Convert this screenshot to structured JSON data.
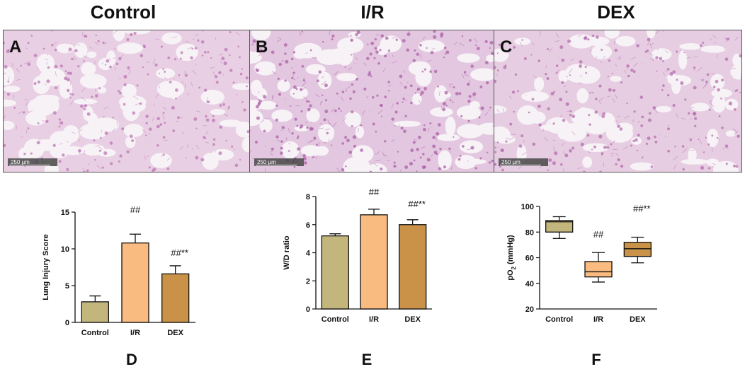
{
  "figure": {
    "group_titles": [
      "Control",
      "I/R",
      "DEX"
    ],
    "image_panels": [
      {
        "letter": "A",
        "scale": "250 µm",
        "tint": "#e8cfe3",
        "cell": "#b96fb0"
      },
      {
        "letter": "B",
        "scale": "250 µm",
        "tint": "#e3c6df",
        "cell": "#a75aa3"
      },
      {
        "letter": "C",
        "scale": "250 µm",
        "tint": "#e6cde2",
        "cell": "#b067ab"
      }
    ],
    "chart_letters": [
      "D",
      "E",
      "F"
    ]
  },
  "colors": {
    "control": "#c2b67d",
    "ir": "#f9bb7f",
    "dex": "#c99248"
  },
  "chart_data": [
    {
      "type": "bar",
      "categories": [
        "Control",
        "I/R",
        "DEX"
      ],
      "values": [
        2.8,
        10.8,
        6.6
      ],
      "errors": [
        0.8,
        1.2,
        1.1
      ],
      "ylabel": "Lung Injury Score",
      "ylim": [
        0,
        15
      ],
      "yticks": [
        "0",
        "5",
        "10",
        "15"
      ],
      "annotations": [
        "",
        "##",
        "##**"
      ]
    },
    {
      "type": "bar",
      "categories": [
        "Control",
        "I/R",
        "DEX"
      ],
      "values": [
        5.2,
        6.7,
        6.0
      ],
      "errors": [
        0.15,
        0.4,
        0.35
      ],
      "ylabel": "W/D ratio",
      "ylim": [
        0,
        8
      ],
      "yticks": [
        "0",
        "2",
        "4",
        "6",
        "8"
      ],
      "annotations": [
        "",
        "##",
        "##**"
      ]
    },
    {
      "type": "box",
      "categories": [
        "Control",
        "I/R",
        "DEX"
      ],
      "boxes": [
        {
          "min": 75,
          "q1": 80,
          "median": 88,
          "q3": 89,
          "max": 92
        },
        {
          "min": 41,
          "q1": 45,
          "median": 49,
          "q3": 57,
          "max": 64
        },
        {
          "min": 56,
          "q1": 61,
          "median": 67,
          "q3": 72,
          "max": 76
        }
      ],
      "ylabel": "pO",
      "ylabel_sub": "2",
      "ylabel_unit": "(mmHg)",
      "ylim": [
        20,
        100
      ],
      "yticks": [
        "20",
        "40",
        "60",
        "80",
        "100"
      ],
      "annotations": [
        "",
        "##",
        "##**"
      ]
    }
  ]
}
